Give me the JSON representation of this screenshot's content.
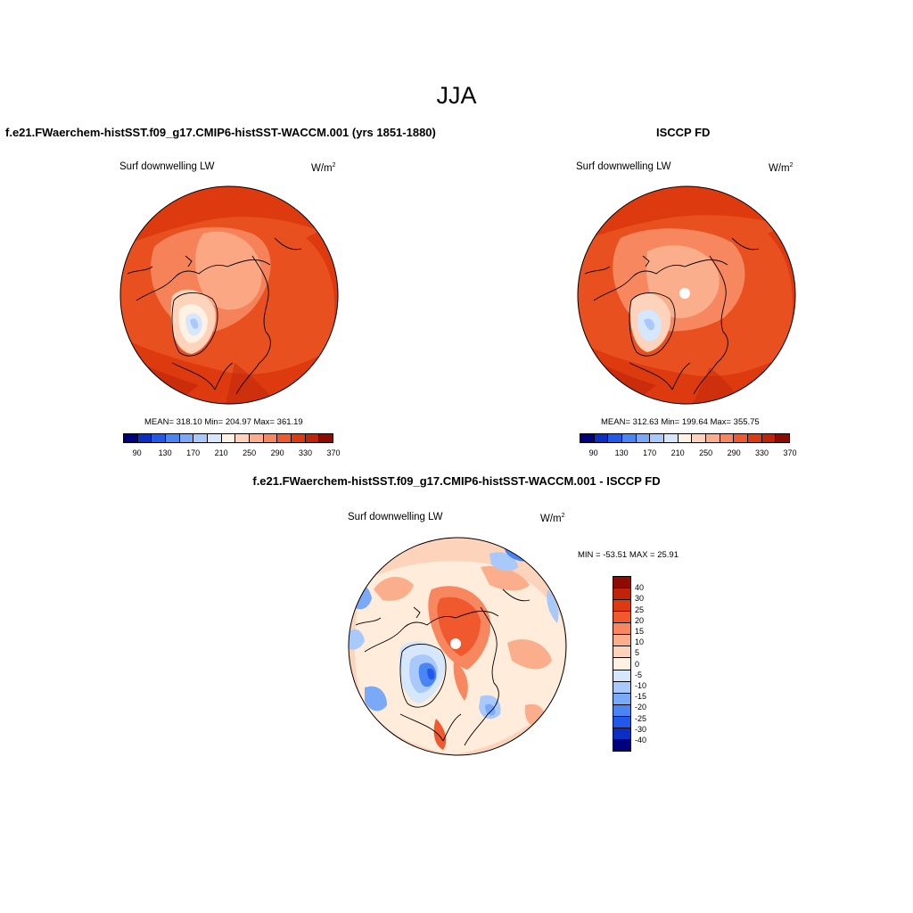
{
  "main_title": "JJA",
  "left_panel": {
    "title": "f.e21.FWaerchem-histSST.f09_g17.CMIP6-histSST-WACCM.001 (yrs 1851-1880)",
    "variable": "Surf downwelling LW",
    "units_base": "W/m",
    "units_exp": "2",
    "stats_text": "MEAN= 318.10  Min= 204.97  Max= 361.19"
  },
  "right_panel": {
    "title": "ISCCP FD",
    "variable": "Surf downwelling LW",
    "units_base": "W/m",
    "units_exp": "2",
    "stats_text": "MEAN= 312.63  Min= 199.64  Max= 355.75"
  },
  "diff_panel": {
    "title": "f.e21.FWaerchem-histSST.f09_g17.CMIP6-histSST-WACCM.001 - ISCCP FD",
    "variable": "Surf downwelling LW",
    "units_base": "W/m",
    "units_exp": "2",
    "stats_text": "MIN = -53.51 MAX =  25.91"
  },
  "colorbar_abs": {
    "colors": [
      "#00007f",
      "#0b2fc3",
      "#2359e8",
      "#4a85f4",
      "#7aa9f8",
      "#a9c9fa",
      "#d6e6fb",
      "#fff1e3",
      "#fdd4bb",
      "#fbae8c",
      "#f7875f",
      "#f0582e",
      "#dd3a0f",
      "#bf240a",
      "#8e0b03"
    ],
    "labels": [
      "90",
      "130",
      "170",
      "210",
      "250",
      "290",
      "330",
      "370"
    ]
  },
  "colorbar_diff": {
    "colors": [
      "#00007f",
      "#0b2fc3",
      "#2359e8",
      "#4a85f4",
      "#7aa9f8",
      "#a9c9fa",
      "#d6e6fb",
      "#fff1e3",
      "#fdd4bb",
      "#fbae8c",
      "#f7875f",
      "#f0582e",
      "#dd3a0f",
      "#bf240a",
      "#8e0b03"
    ],
    "labels": [
      "40",
      "30",
      "25",
      "20",
      "15",
      "10",
      "5",
      "0",
      "-5",
      "-10",
      "-15",
      "-20",
      "-25",
      "-30",
      "-40"
    ]
  }
}
